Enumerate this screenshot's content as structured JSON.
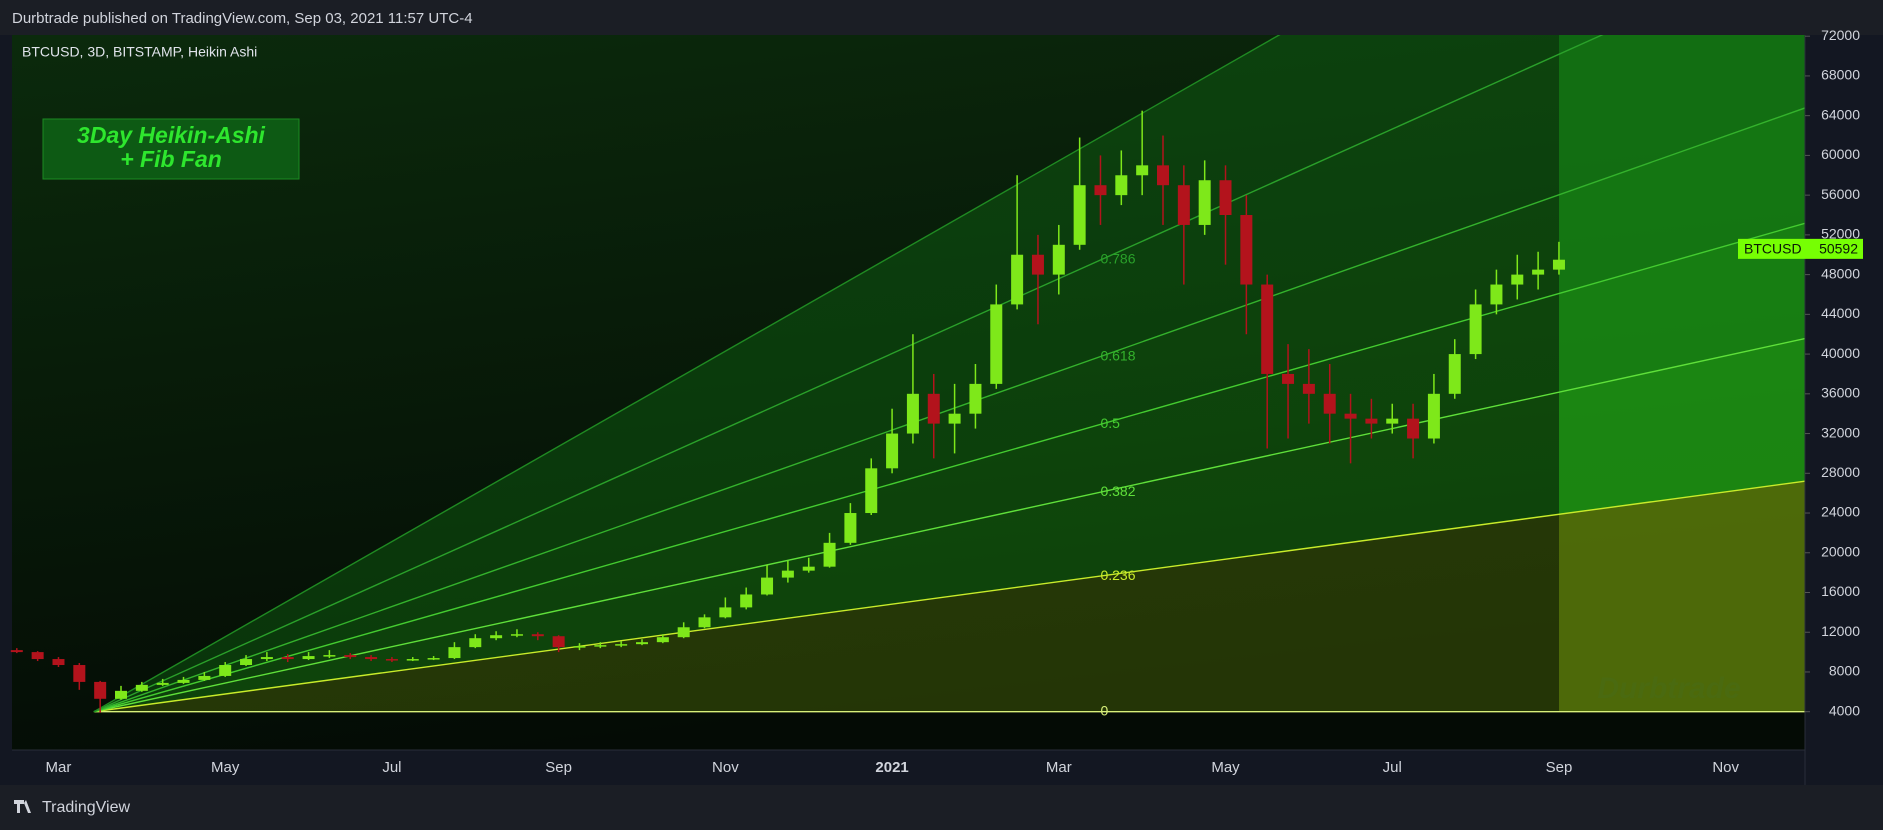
{
  "chart_data": {
    "type": "candlestick",
    "header": "Durbtrade published on TradingView.com, Sep 03, 2021 11:57 UTC-4",
    "symbol_info": "BTCUSD, 3D, BITSTAMP, Heikin Ashi",
    "title_lines": [
      "3Day Heikin-Ashi",
      "+ Fib Fan"
    ],
    "watermark": "Durbtrade",
    "footer": "TradingView",
    "up_color": "#7ee81a",
    "down_color": "#b3131c",
    "categories": [
      null,
      null,
      "Mar",
      null,
      null,
      null,
      null,
      null,
      null,
      null,
      "May",
      null,
      null,
      null,
      null,
      null,
      null,
      null,
      "Jul",
      null,
      null,
      null,
      null,
      null,
      null,
      null,
      "Sep",
      null,
      null,
      null,
      null,
      null,
      null,
      null,
      "Nov",
      null,
      null,
      null,
      null,
      null,
      null,
      null,
      "2021",
      null,
      null,
      null,
      null,
      null,
      null,
      null,
      "Mar",
      null,
      null,
      null,
      null,
      null,
      null,
      null,
      "May",
      null,
      null,
      null,
      null,
      null,
      null,
      null,
      "Jul",
      null,
      null,
      null,
      null,
      null,
      null,
      null,
      "Sep",
      null,
      null,
      null,
      null,
      null,
      null,
      null,
      "Nov",
      null,
      null,
      null
    ],
    "open": [
      10200,
      10000,
      9300,
      8700,
      7000,
      5300,
      6100,
      6700,
      6900,
      7200,
      7600,
      8700,
      9300,
      9500,
      9300,
      9600,
      9700,
      9500,
      9300,
      9200,
      9300,
      9400,
      10500,
      11400,
      11700,
      11800,
      11600,
      10500,
      10600,
      10700,
      10800,
      11000,
      11500,
      12500,
      13500,
      14500,
      15800,
      17500,
      18200,
      18600,
      21000,
      24000,
      28500,
      32000,
      36000,
      33000,
      34000,
      37000,
      45000,
      50000,
      48000,
      51000,
      57000,
      56000,
      58000,
      59000,
      57000,
      53000,
      57500,
      54000,
      47000,
      38000,
      37000,
      36000,
      34000,
      33500,
      33000,
      33500,
      31500,
      36000,
      40000,
      45000,
      47000,
      48000,
      48500,
      null,
      null,
      null,
      null,
      null,
      null,
      null,
      null,
      null,
      null,
      null
    ],
    "high": [
      10400,
      10100,
      9500,
      8900,
      7100,
      6600,
      7000,
      7300,
      7500,
      8000,
      9000,
      9700,
      10000,
      9800,
      10000,
      10200,
      9900,
      9700,
      9500,
      9500,
      9600,
      11000,
      11800,
      12100,
      12300,
      12000,
      11700,
      10900,
      11000,
      11100,
      11300,
      11800,
      13000,
      13800,
      15500,
      16500,
      18800,
      19200,
      19500,
      22000,
      25000,
      29500,
      34500,
      42000,
      38000,
      37000,
      39000,
      47000,
      58000,
      52000,
      53000,
      61800,
      60000,
      60500,
      64500,
      62000,
      59000,
      59500,
      59000,
      56000,
      48000,
      41000,
      40500,
      39000,
      36000,
      35500,
      35000,
      35000,
      38000,
      41500,
      46500,
      48500,
      50000,
      50300,
      51300,
      null,
      null,
      null,
      null,
      null,
      null,
      null,
      null,
      null,
      null,
      null
    ],
    "low": [
      9900,
      9100,
      8500,
      6200,
      3900,
      5200,
      6000,
      6600,
      6800,
      7100,
      7500,
      8600,
      9100,
      9000,
      9200,
      9400,
      9300,
      9100,
      9000,
      9100,
      9200,
      9300,
      10400,
      11200,
      11500,
      11200,
      10000,
      10200,
      10400,
      10500,
      10700,
      10900,
      11400,
      12400,
      13400,
      14300,
      15700,
      17000,
      18000,
      18500,
      20800,
      23800,
      28000,
      31000,
      29500,
      30000,
      32500,
      36500,
      44500,
      43000,
      46000,
      50500,
      53000,
      55000,
      56000,
      53000,
      47000,
      52000,
      49000,
      42000,
      30500,
      31500,
      33000,
      31000,
      29000,
      31500,
      32000,
      29500,
      31000,
      35500,
      39500,
      44000,
      45500,
      46500,
      48000,
      null,
      null,
      null,
      null,
      null,
      null,
      null,
      null,
      null,
      null,
      null
    ],
    "close": [
      10000,
      9300,
      8700,
      7000,
      5300,
      6100,
      6700,
      6900,
      7200,
      7600,
      8700,
      9300,
      9500,
      9300,
      9600,
      9700,
      9500,
      9300,
      9200,
      9300,
      9400,
      10500,
      11400,
      11700,
      11800,
      11600,
      10500,
      10600,
      10700,
      10800,
      11000,
      11500,
      12500,
      13500,
      14500,
      15800,
      17500,
      18200,
      18600,
      21000,
      24000,
      28500,
      32000,
      36000,
      33000,
      34000,
      37000,
      45000,
      50000,
      48000,
      51000,
      57000,
      56000,
      58000,
      59000,
      57000,
      53000,
      57500,
      54000,
      47000,
      38000,
      37000,
      36000,
      34000,
      33500,
      33000,
      33500,
      31500,
      36000,
      40000,
      45000,
      47000,
      48000,
      48500,
      49500,
      null,
      null,
      null,
      null,
      null,
      null,
      null,
      null,
      null,
      null,
      null
    ],
    "ylim": [
      145,
      72120
    ],
    "yticks": [
      4000,
      8000,
      12000,
      16000,
      20000,
      24000,
      28000,
      32000,
      36000,
      40000,
      44000,
      48000,
      52000,
      56000,
      60000,
      64000,
      68000,
      72000
    ],
    "last_price": {
      "symbol": "BTCUSD",
      "value": 50592,
      "color": "#76ff03"
    },
    "fib_fan": {
      "levels": [
        0,
        0.236,
        0.382,
        0.5,
        0.618,
        0.786
      ],
      "low": 4000,
      "high": 88200
    }
  }
}
